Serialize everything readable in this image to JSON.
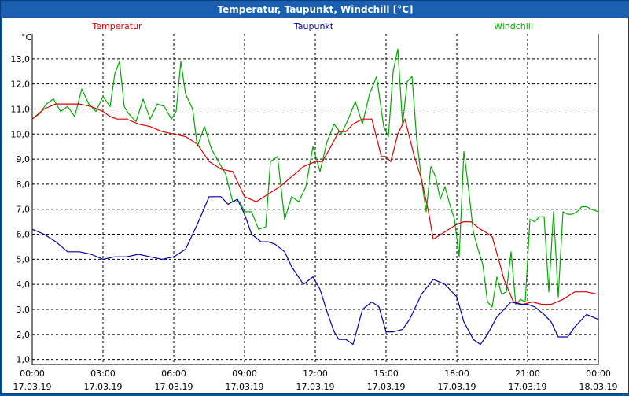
{
  "window": {
    "title": "Temperatur, Taupunkt, Windchill [°C]"
  },
  "colors": {
    "temperatur": "#dd0000",
    "taupunkt": "#0000aa",
    "windchill": "#00aa00",
    "grid": "#000000",
    "titlebar": "#1a5fb0"
  },
  "chart_data": {
    "type": "line",
    "title": "Temperatur, Taupunkt, Windchill [°C]",
    "ylabel": "°C",
    "xlabel": "",
    "ylim": [
      0.8,
      14.0
    ],
    "ytick_values": [
      1,
      2,
      3,
      4,
      5,
      6,
      7,
      8,
      9,
      10,
      11,
      12,
      13
    ],
    "ytick_labels": [
      "1,0",
      "2,0",
      "3,0",
      "4,0",
      "5,0",
      "6,0",
      "7,0",
      "8,0",
      "9,0",
      "10,0",
      "11,0",
      "12,0",
      "13,0"
    ],
    "xlim": [
      0,
      24
    ],
    "xtick_values": [
      0,
      3,
      6,
      9,
      12,
      15,
      18,
      21,
      24
    ],
    "xtick_times": [
      "00:00",
      "03:00",
      "06:00",
      "09:00",
      "12:00",
      "15:00",
      "18:00",
      "21:00",
      "00:00"
    ],
    "xtick_dates": [
      "17.03.19",
      "17.03.19",
      "17.03.19",
      "17.03.19",
      "17.03.19",
      "17.03.19",
      "17.03.19",
      "17.03.19",
      "18.03.19"
    ],
    "grid": true,
    "legend_position": "top",
    "series": [
      {
        "name": "Temperatur",
        "color": "#dd0000",
        "x": [
          0,
          0.5,
          1,
          1.5,
          2,
          2.5,
          3,
          3.3,
          3.6,
          4,
          4.5,
          5,
          5.5,
          6,
          6.5,
          7,
          7.5,
          8,
          8.5,
          8.8,
          9,
          9.5,
          10,
          10.5,
          11,
          11.5,
          12,
          12.3,
          12.6,
          13,
          13.3,
          13.6,
          14,
          14.4,
          14.8,
          15,
          15.2,
          15.5,
          15.8,
          16.2,
          16.5,
          16.8,
          17,
          17.5,
          18,
          18.3,
          18.6,
          19,
          19.2,
          19.5,
          19.8,
          20,
          20.4,
          20.8,
          21.2,
          21.6,
          22,
          22.5,
          23,
          23.5,
          24
        ],
        "y": [
          10.6,
          11.0,
          11.2,
          11.2,
          11.2,
          11.1,
          10.9,
          10.7,
          10.6,
          10.6,
          10.4,
          10.3,
          10.1,
          10.0,
          9.9,
          9.6,
          8.9,
          8.6,
          8.5,
          7.9,
          7.5,
          7.3,
          7.6,
          7.9,
          8.3,
          8.7,
          8.9,
          8.9,
          9.4,
          10.1,
          10.1,
          10.4,
          10.6,
          10.6,
          9.1,
          9.1,
          8.9,
          10.0,
          10.6,
          9.1,
          8.2,
          6.9,
          5.8,
          6.1,
          6.4,
          6.5,
          6.5,
          6.2,
          6.1,
          5.9,
          4.9,
          4.2,
          3.3,
          3.2,
          3.3,
          3.2,
          3.2,
          3.4,
          3.7,
          3.7,
          3.6
        ]
      },
      {
        "name": "Taupunkt",
        "color": "#0000aa",
        "x": [
          0,
          0.5,
          1,
          1.5,
          2,
          2.5,
          3,
          3.5,
          4,
          4.5,
          5,
          5.5,
          6,
          6.5,
          7,
          7.5,
          8,
          8.3,
          8.7,
          9,
          9.3,
          9.7,
          10,
          10.3,
          10.7,
          11,
          11.5,
          11.9,
          12.2,
          12.5,
          12.8,
          13,
          13.3,
          13.6,
          14,
          14.4,
          14.7,
          15,
          15.3,
          15.7,
          16,
          16.5,
          17,
          17.5,
          18,
          18.3,
          18.7,
          19,
          19.3,
          19.7,
          20,
          20.3,
          20.7,
          21,
          21.3,
          21.7,
          22,
          22.3,
          22.7,
          23,
          23.5,
          24
        ],
        "y": [
          6.2,
          6.0,
          5.7,
          5.3,
          5.3,
          5.2,
          5.0,
          5.1,
          5.1,
          5.2,
          5.1,
          5.0,
          5.1,
          5.4,
          6.4,
          7.5,
          7.5,
          7.2,
          7.4,
          6.8,
          6.0,
          5.7,
          5.7,
          5.6,
          5.3,
          4.7,
          4.0,
          4.3,
          3.8,
          2.9,
          2.1,
          1.8,
          1.8,
          1.6,
          3.0,
          3.3,
          3.1,
          2.1,
          2.1,
          2.2,
          2.6,
          3.6,
          4.2,
          4.0,
          3.5,
          2.5,
          1.8,
          1.6,
          2.0,
          2.7,
          3.0,
          3.3,
          3.2,
          3.2,
          3.1,
          2.8,
          2.5,
          1.9,
          1.9,
          2.3,
          2.8,
          2.6
        ]
      },
      {
        "name": "Windchill",
        "color": "#00aa00",
        "x": [
          0,
          0.3,
          0.6,
          0.9,
          1.2,
          1.5,
          1.8,
          2.1,
          2.4,
          2.7,
          3.0,
          3.3,
          3.5,
          3.7,
          3.9,
          4.1,
          4.4,
          4.7,
          5.0,
          5.3,
          5.6,
          5.9,
          6.1,
          6.3,
          6.5,
          6.8,
          7.0,
          7.3,
          7.6,
          7.9,
          8.2,
          8.5,
          8.8,
          9.0,
          9.3,
          9.6,
          9.9,
          10.1,
          10.4,
          10.7,
          11.0,
          11.3,
          11.6,
          11.9,
          12.2,
          12.5,
          12.8,
          13.1,
          13.4,
          13.7,
          14.0,
          14.3,
          14.6,
          14.9,
          15.1,
          15.3,
          15.5,
          15.7,
          15.9,
          16.1,
          16.3,
          16.5,
          16.7,
          16.9,
          17.1,
          17.3,
          17.5,
          17.7,
          17.9,
          18.1,
          18.3,
          18.5,
          18.7,
          18.9,
          19.1,
          19.3,
          19.5,
          19.7,
          19.9,
          20.1,
          20.3,
          20.5,
          20.7,
          20.9,
          21.1,
          21.3,
          21.5,
          21.7,
          21.9,
          22.1,
          22.3,
          22.5,
          22.7,
          22.9,
          23.1,
          23.3,
          23.5,
          23.7,
          24.0
        ],
        "y": [
          10.6,
          10.8,
          11.2,
          11.4,
          10.9,
          11.1,
          10.7,
          11.8,
          11.2,
          10.9,
          11.5,
          11.1,
          12.4,
          12.9,
          11.1,
          10.8,
          10.5,
          11.4,
          10.6,
          11.2,
          11.1,
          10.6,
          10.9,
          12.9,
          11.6,
          11.0,
          9.5,
          10.3,
          9.4,
          8.9,
          8.4,
          7.3,
          7.3,
          6.9,
          6.9,
          6.2,
          6.3,
          8.9,
          9.1,
          6.6,
          7.5,
          7.3,
          7.9,
          9.5,
          8.5,
          9.7,
          10.4,
          10.0,
          10.6,
          11.3,
          10.4,
          11.6,
          12.3,
          10.3,
          9.9,
          12.5,
          13.4,
          10.4,
          12.1,
          12.3,
          9.8,
          8.2,
          6.9,
          8.7,
          8.3,
          7.4,
          7.9,
          7.2,
          6.6,
          5.1,
          9.3,
          7.8,
          6.1,
          5.4,
          4.8,
          3.3,
          3.1,
          4.3,
          3.6,
          3.7,
          5.3,
          3.2,
          3.4,
          3.3,
          6.6,
          6.5,
          6.7,
          6.7,
          3.7,
          6.9,
          3.5,
          6.9,
          6.8,
          6.8,
          6.9,
          7.1,
          7.1,
          7.0,
          6.9
        ]
      }
    ]
  }
}
